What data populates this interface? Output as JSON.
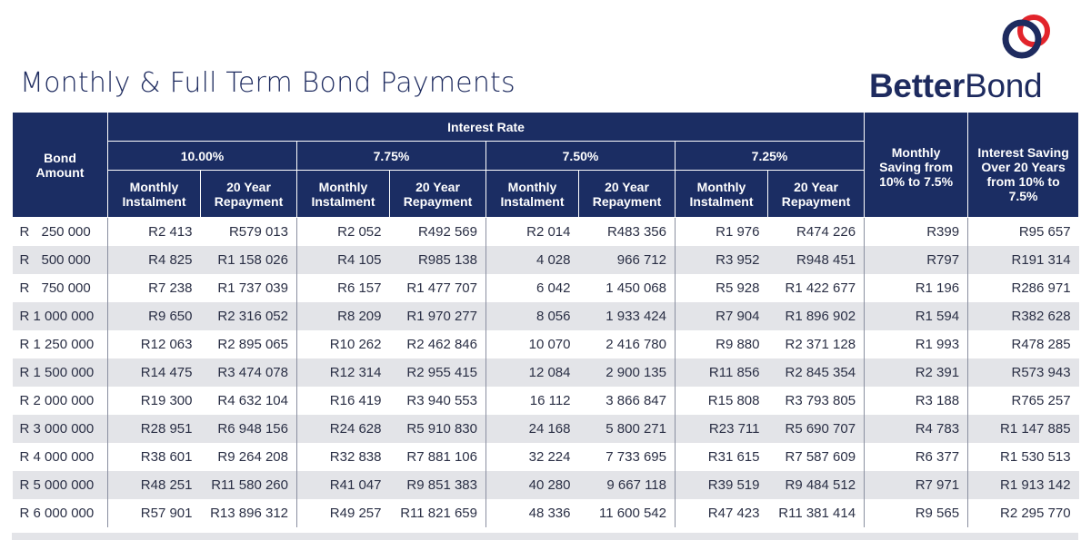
{
  "title": "Monthly & Full Term Bond Payments",
  "logo": {
    "bold": "Better",
    "regular": "Bond",
    "ring_color_1": "#1e2b5f",
    "ring_color_2": "#e2242b"
  },
  "colors": {
    "header_bg": "#1b2d63",
    "stripe": "#e3e4e8"
  },
  "headers": {
    "bond_amount": "Bond Amount",
    "interest_rate": "Interest Rate",
    "rates": [
      "10.00%",
      "7.75%",
      "7.50%",
      "7.25%"
    ],
    "monthly_instalment": "Monthly Instalment",
    "repayment_20": "20 Year Repayment",
    "monthly_saving": "Monthly Saving from 10% to 7.5%",
    "interest_saving": "Interest Saving Over 20 Years from 10% to 7.5%"
  },
  "rows": [
    [
      "R",
      "250 000",
      "R2 413",
      "R579 013",
      "R2 052",
      "R492 569",
      "R2 014",
      "R483 356",
      "R1 976",
      "R474 226",
      "R399",
      "R95 657"
    ],
    [
      "R",
      "500 000",
      "R4 825",
      "R1 158 026",
      "R4 105",
      "R985 138",
      "4 028",
      "966 712",
      "R3 952",
      "R948 451",
      "R797",
      "R191 314"
    ],
    [
      "R",
      "750 000",
      "R7 238",
      "R1 737 039",
      "R6 157",
      "R1 477 707",
      "6 042",
      "1 450 068",
      "R5 928",
      "R1 422 677",
      "R1 196",
      "R286 971"
    ],
    [
      "",
      "R 1 000 000",
      "R9 650",
      "R2 316 052",
      "R8 209",
      "R1 970 277",
      "8 056",
      "1 933 424",
      "R7 904",
      "R1 896 902",
      "R1 594",
      "R382 628"
    ],
    [
      "",
      "R 1 250 000",
      "R12 063",
      "R2 895 065",
      "R10 262",
      "R2 462 846",
      "10 070",
      "2 416 780",
      "R9 880",
      "R2 371 128",
      "R1 993",
      "R478 285"
    ],
    [
      "",
      "R 1 500 000",
      "R14 475",
      "R3 474 078",
      "R12 314",
      "R2 955 415",
      "12 084",
      "2 900 135",
      "R11 856",
      "R2 845 354",
      "R2 391",
      "R573 943"
    ],
    [
      "",
      "R 2 000 000",
      "R19 300",
      "R4 632 104",
      "R16 419",
      "R3 940 553",
      "16 112",
      "3 866 847",
      "R15 808",
      "R3 793 805",
      "R3 188",
      "R765 257"
    ],
    [
      "",
      "R 3 000 000",
      "R28 951",
      "R6 948 156",
      "R24 628",
      "R5 910 830",
      "24 168",
      "5 800 271",
      "R23 711",
      "R5 690 707",
      "R4 783",
      "R1 147 885"
    ],
    [
      "",
      "R 4 000 000",
      "R38 601",
      "R9 264 208",
      "R32 838",
      "R7 881 106",
      "32 224",
      "7 733 695",
      "R31 615",
      "R7 587 609",
      "R6 377",
      "R1 530 513"
    ],
    [
      "",
      "R 5 000 000",
      "R48 251",
      "R11 580 260",
      "R41 047",
      "R9 851 383",
      "40 280",
      "9 667 118",
      "R39 519",
      "R9 484 512",
      "R7 971",
      "R1 913 142"
    ],
    [
      "",
      "R 6 000 000",
      "R57 901",
      "R13 896 312",
      "R49 257",
      "R11 821 659",
      "48 336",
      "11 600 542",
      "R47 423",
      "R11 381 414",
      "R9 565",
      "R2 295 770"
    ]
  ]
}
